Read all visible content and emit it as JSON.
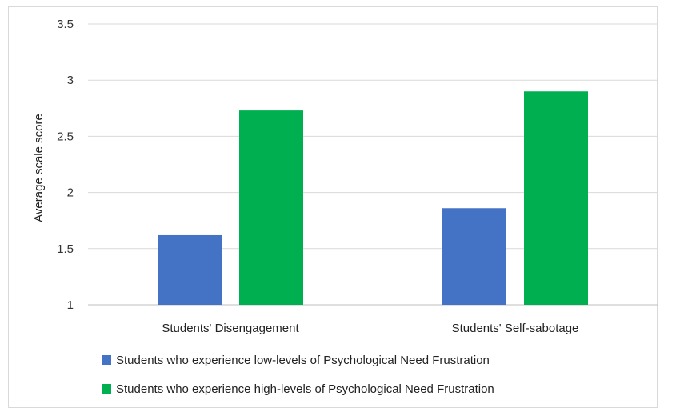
{
  "chart_data": {
    "type": "bar",
    "categories": [
      "Students' Disengagement",
      "Students' Self-sabotage"
    ],
    "series": [
      {
        "name": "Students who experience low-levels of Psychological Need Frustration",
        "values": [
          1.62,
          1.86
        ],
        "color": "#4472c4"
      },
      {
        "name": "Students who experience high-levels of Psychological Need Frustration",
        "values": [
          2.73,
          2.9
        ],
        "color": "#00b050"
      }
    ],
    "ylabel": "Average scale score",
    "ylim": [
      1,
      3.5
    ],
    "yticks": [
      1,
      1.5,
      2,
      2.5,
      3,
      3.5
    ],
    "ytick_labels": [
      "1",
      "1.5",
      "2",
      "2.5",
      "3",
      "3.5"
    ],
    "grid": true,
    "legend_position": "bottom"
  }
}
